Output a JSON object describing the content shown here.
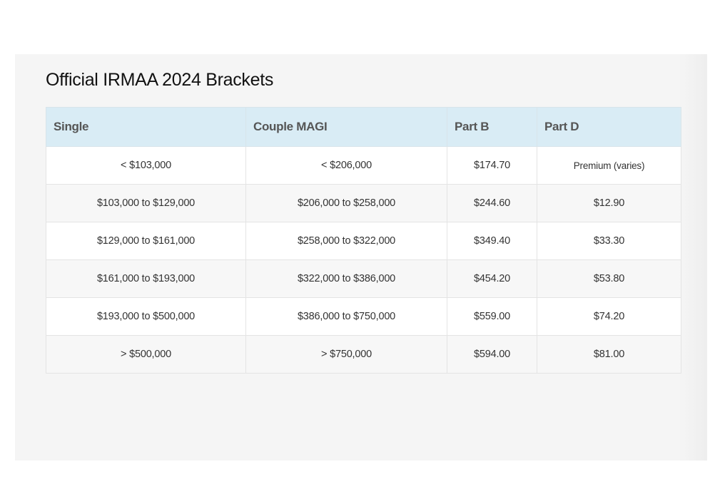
{
  "section": {
    "title": "Official IRMAA 2024 Brackets"
  },
  "table": {
    "headers": [
      "Single",
      "Couple MAGI",
      "Part B",
      "Part D"
    ],
    "rows": [
      [
        "< $103,000",
        "< $206,000",
        "$174.70",
        "Premium (varies)"
      ],
      [
        "$103,000 to $129,000",
        "$206,000 to $258,000",
        "$244.60",
        "$12.90"
      ],
      [
        "$129,000 to $161,000",
        "$258,000 to $322,000",
        "$349.40",
        "$33.30"
      ],
      [
        "$161,000 to $193,000",
        "$322,000 to $386,000",
        "$454.20",
        "$53.80"
      ],
      [
        "$193,000 to $500,000",
        "$386,000 to $750,000",
        "$559.00",
        "$74.20"
      ],
      [
        "> $500,000",
        "> $750,000",
        "$594.00",
        "$81.00"
      ]
    ]
  }
}
